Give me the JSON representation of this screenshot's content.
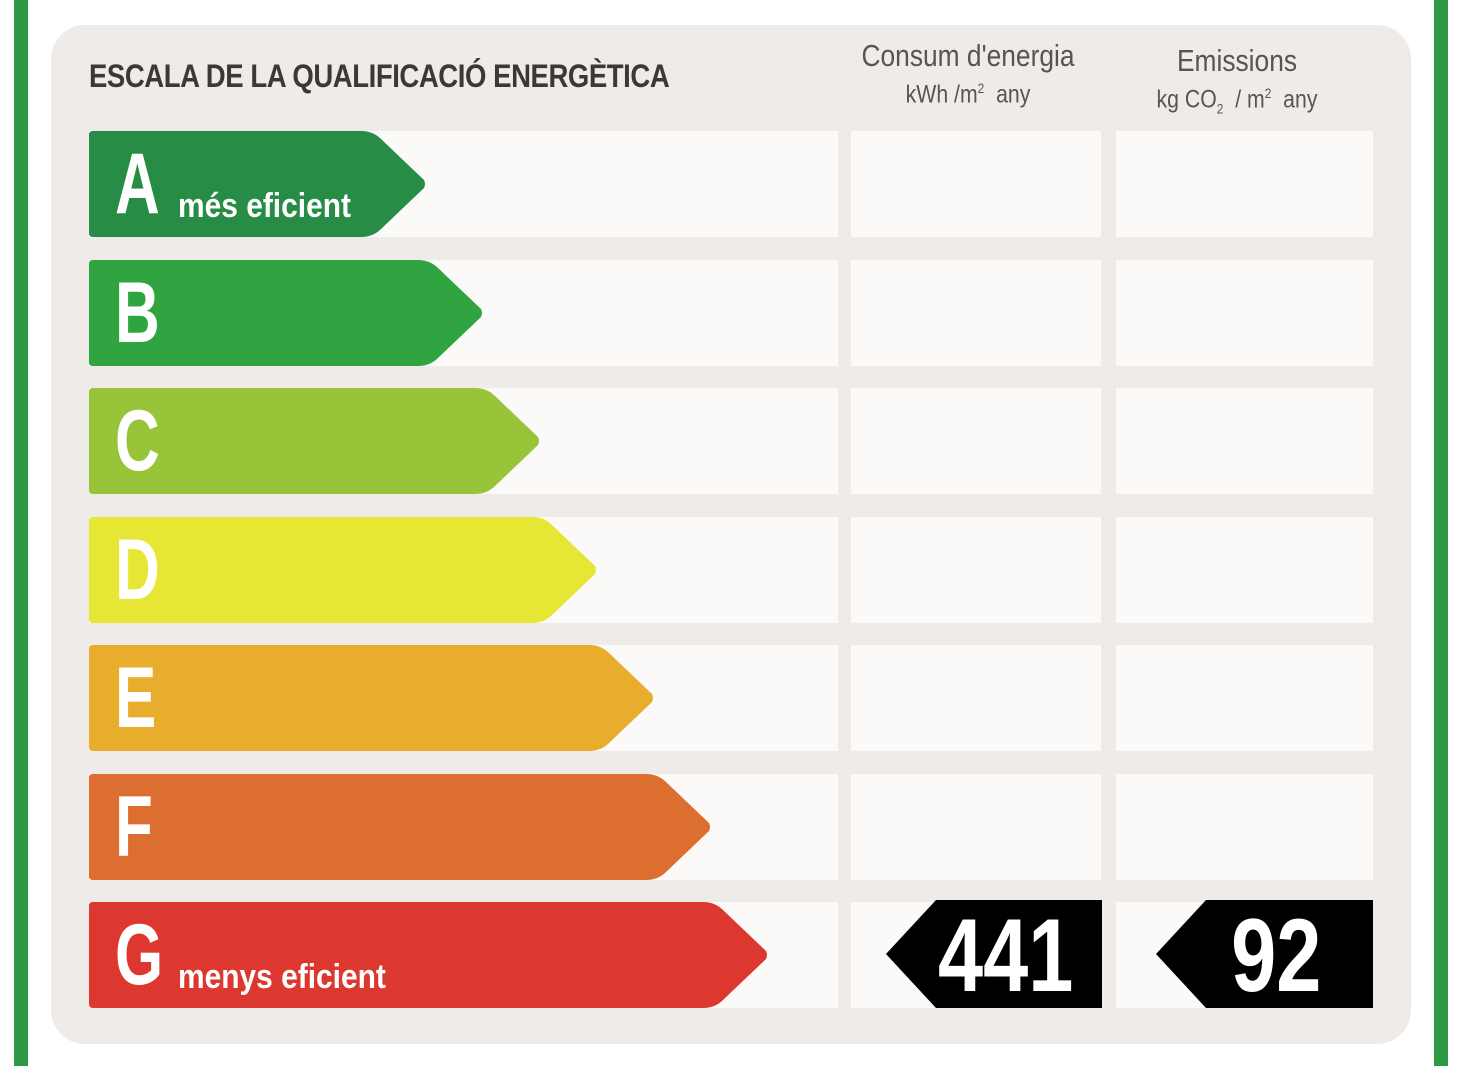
{
  "title": "ESCALA DE LA QUALIFICACIÓ ENERGÈTICA",
  "columns": {
    "energy": {
      "label": "Consum d'energia",
      "unit_prefix": "kWh /m",
      "unit_sup": "2",
      "unit_suffix": "any"
    },
    "emissions": {
      "label": "Emissions",
      "unit_prefix": "kg CO",
      "unit_sub": "2",
      "unit_mid": " / m",
      "unit_sup": "2",
      "unit_suffix": "any"
    }
  },
  "ratings": [
    {
      "letter": "A",
      "sublabel": "més eficient",
      "color": "#268c46"
    },
    {
      "letter": "B",
      "sublabel": "",
      "color": "#2fa441"
    },
    {
      "letter": "C",
      "sublabel": "",
      "color": "#98c43a"
    },
    {
      "letter": "D",
      "sublabel": "",
      "color": "#e6e634"
    },
    {
      "letter": "E",
      "sublabel": "",
      "color": "#e9ad2e"
    },
    {
      "letter": "F",
      "sublabel": "",
      "color": "#dc6e2f"
    },
    {
      "letter": "G",
      "sublabel": "menys eficient",
      "color": "#dc3830"
    }
  ],
  "current": {
    "rating": "G",
    "energy_value": "441",
    "emissions_value": "92",
    "badge_color": "#000000"
  },
  "colors": {
    "border": "#2e9a45",
    "panel": "#eeebe8",
    "cell": "#fbfaf8"
  }
}
